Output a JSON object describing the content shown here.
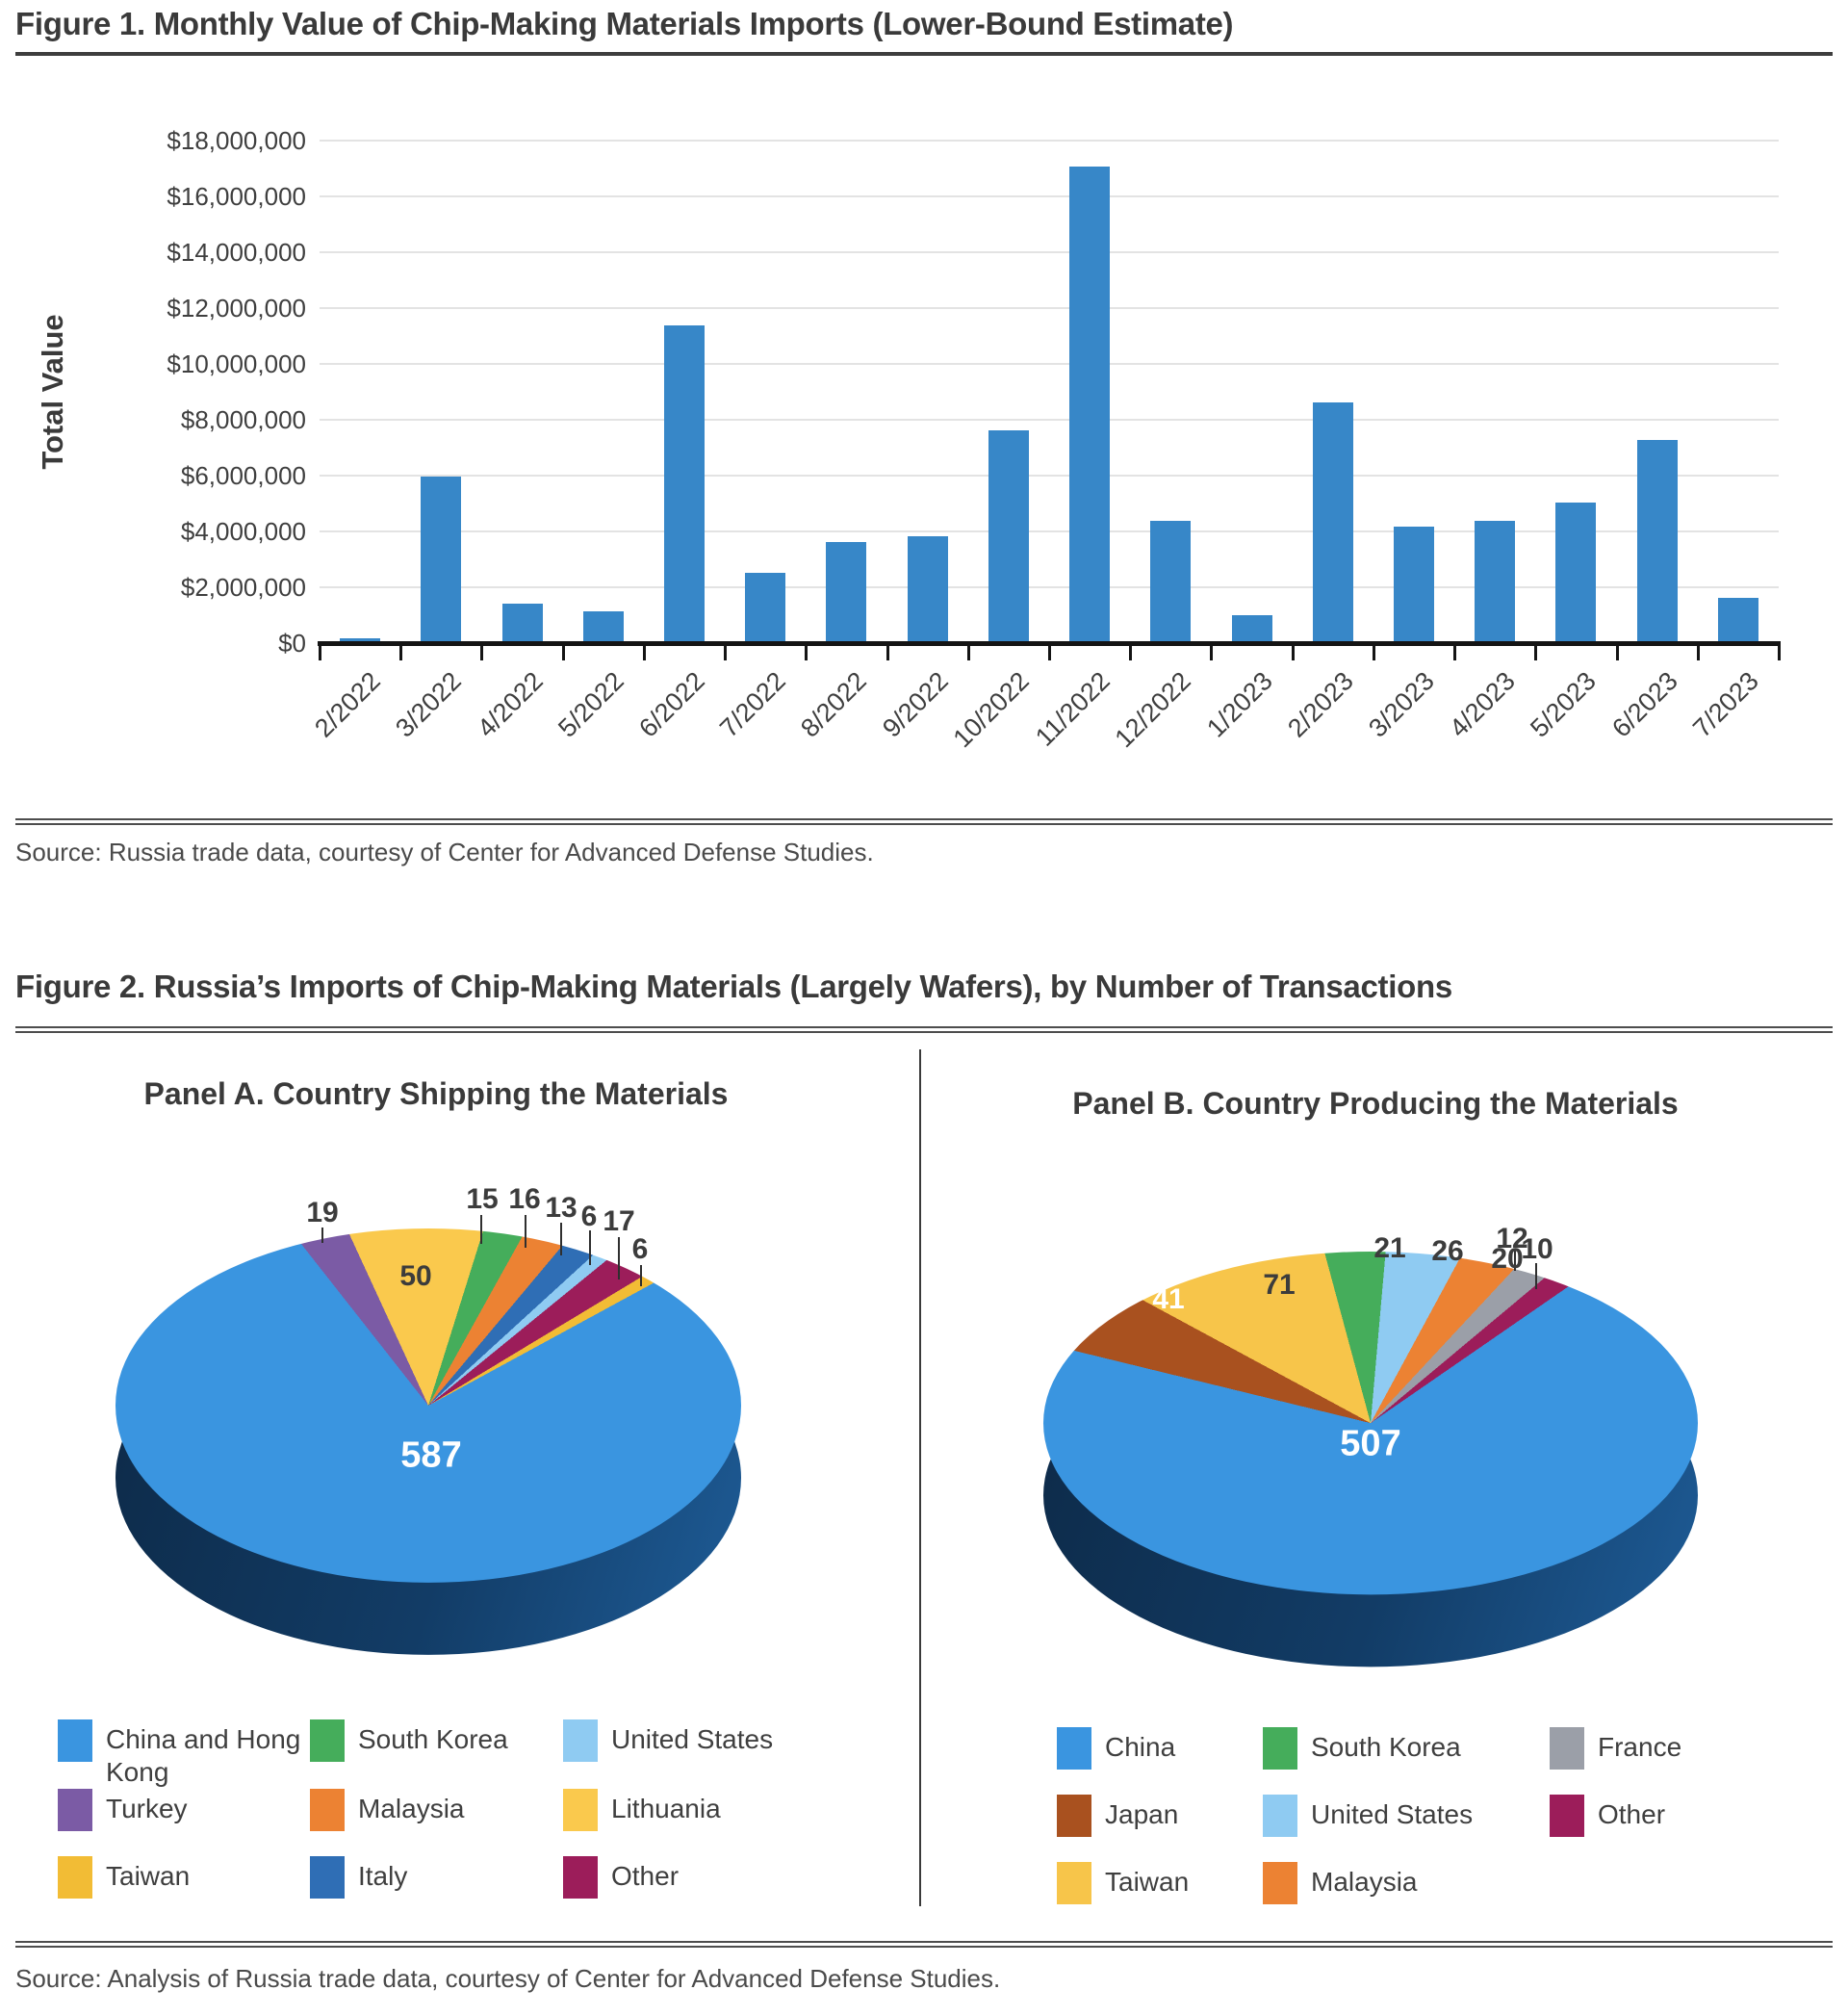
{
  "figure1": {
    "title": "Figure 1. Monthly Value of Chip-Making Materials Imports (Lower-Bound Estimate)",
    "source": "Source: Russia trade data, courtesy of Center for Advanced Defense Studies.",
    "ylabel": "Total Value"
  },
  "figure2": {
    "title": "Figure 2. Russia’s Imports of Chip-Making Materials (Largely Wafers), by Number of Transactions",
    "source": "Source: Analysis of Russia trade data, courtesy of Center for Advanced Defense Studies.",
    "panelA_title": "Panel A. Country Shipping the Materials",
    "panelB_title": "Panel B. Country Producing the Materials"
  },
  "colors": {
    "bar_blue": "#3787c8",
    "pie_blue": "#3a95e0",
    "green": "#45ad5b",
    "light_blue": "#8fcbf2",
    "purple": "#7b5ba5",
    "orange": "#ec8233",
    "yellow": "#fac94d",
    "gold": "#f2bc35",
    "gold_b": "#f7c54a",
    "italy_blue": "#2f6eb5",
    "maroon": "#9c1d5a",
    "brown": "#a9511f",
    "gray": "#9b9fa8",
    "grid": "#e3e3e3"
  },
  "chart_data": [
    {
      "id": "monthly-imports",
      "type": "bar",
      "title": "Figure 1. Monthly Value of Chip-Making Materials Imports (Lower-Bound Estimate)",
      "xlabel": "",
      "ylabel": "Total Value",
      "categories": [
        "2/2022",
        "3/2022",
        "4/2022",
        "5/2022",
        "6/2022",
        "7/2022",
        "8/2022",
        "9/2022",
        "10/2022",
        "11/2022",
        "12/2022",
        "1/2023",
        "2/2023",
        "3/2023",
        "4/2023",
        "5/2023",
        "6/2023",
        "7/2023"
      ],
      "values": [
        100000,
        5900000,
        1350000,
        1070000,
        11300000,
        2450000,
        3550000,
        3750000,
        7550000,
        17000000,
        4300000,
        930000,
        8550000,
        4100000,
        4300000,
        4950000,
        7200000,
        1550000
      ],
      "ylim": [
        0,
        18000000
      ],
      "ytick_step": 2000000,
      "ytick_labels": [
        "$18,000,000",
        "$16,000,000",
        "$14,000,000",
        "$12,000,000",
        "$10,000,000",
        "$8,000,000",
        "$6,000,000",
        "$4,000,000",
        "$2,000,000",
        "$0"
      ],
      "grid": true,
      "bar_color": "#3787c8"
    },
    {
      "id": "panelA",
      "type": "pie",
      "title": "Panel A. Country Shipping the Materials",
      "total": 729,
      "start_angle_deg": -24,
      "slices": [
        {
          "label": "Turkey",
          "value": 19,
          "color": "#7b5ba5"
        },
        {
          "label": "Lithuania",
          "value": 50,
          "color": "#fac94d"
        },
        {
          "label": "South Korea",
          "value": 15,
          "color": "#45ad5b"
        },
        {
          "label": "Malaysia",
          "value": 16,
          "color": "#ec8233"
        },
        {
          "label": "Italy",
          "value": 13,
          "color": "#2f6eb5"
        },
        {
          "label": "United States",
          "value": 6,
          "color": "#8fcbf2"
        },
        {
          "label": "Other",
          "value": 17,
          "color": "#9c1d5a"
        },
        {
          "label": "Taiwan",
          "value": 6,
          "color": "#f2bc35"
        },
        {
          "label": "China and Hong Kong",
          "value": 587,
          "color": "#3a95e0"
        }
      ],
      "legend": [
        "China and Hong Kong",
        "South Korea",
        "United States",
        "Turkey",
        "Malaysia",
        "Lithuania",
        "Taiwan",
        "Italy",
        "Other"
      ]
    },
    {
      "id": "panelB",
      "type": "pie",
      "title": "Panel B. Country Producing the Materials",
      "total": 708,
      "start_angle_deg": -65,
      "slices": [
        {
          "label": "Japan",
          "value": 41,
          "color": "#a9511f"
        },
        {
          "label": "Taiwan",
          "value": 71,
          "color": "#f7c54a"
        },
        {
          "label": "South Korea",
          "value": 21,
          "color": "#45ad5b"
        },
        {
          "label": "United States",
          "value": 26,
          "color": "#8fcbf2"
        },
        {
          "label": "Malaysia",
          "value": 20,
          "color": "#ec8233"
        },
        {
          "label": "France",
          "value": 12,
          "color": "#9b9fa8"
        },
        {
          "label": "Other",
          "value": 10,
          "color": "#9c1d5a"
        },
        {
          "label": "China",
          "value": 507,
          "color": "#3a95e0"
        }
      ],
      "legend": [
        "China",
        "South Korea",
        "France",
        "Japan",
        "United States",
        "Other",
        "Taiwan",
        "Malaysia"
      ]
    }
  ]
}
